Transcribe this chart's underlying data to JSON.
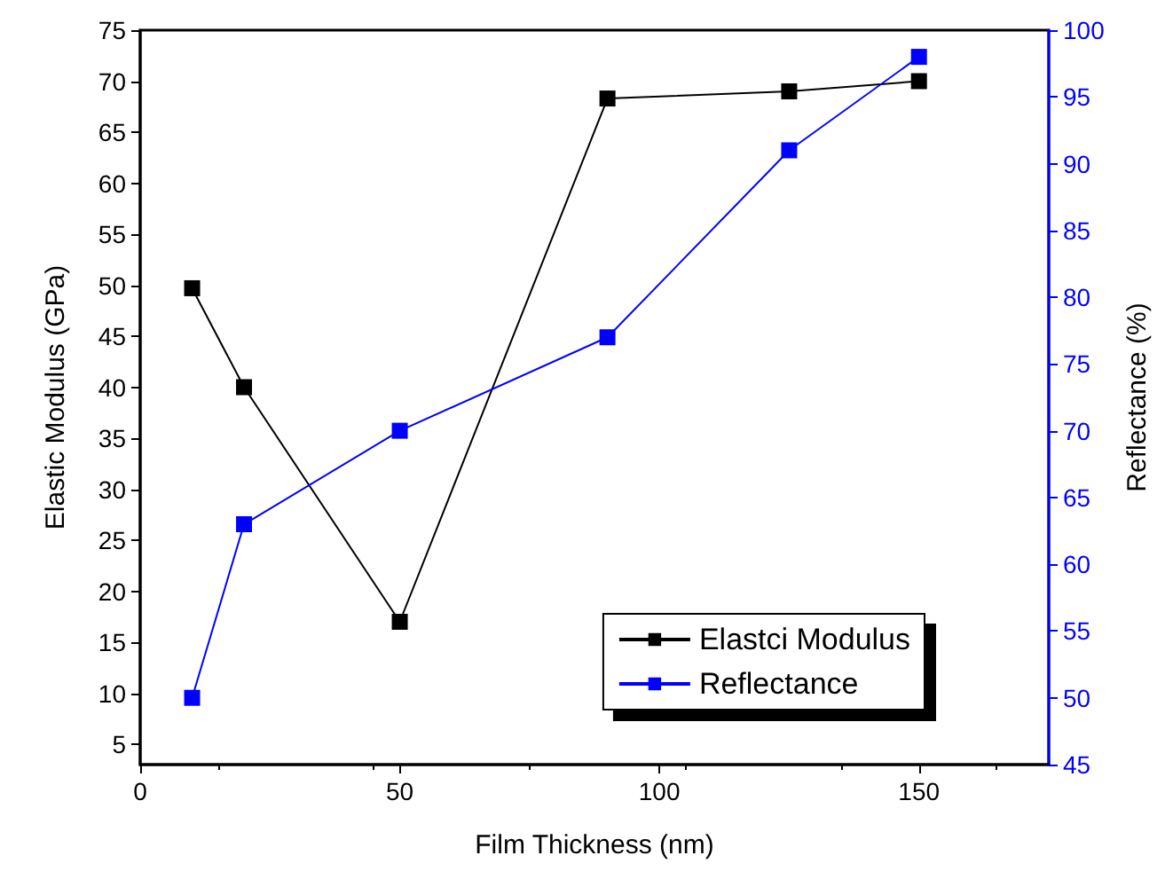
{
  "chart_data": {
    "type": "line",
    "xlabel": "Film Thickness (nm)",
    "ylabel": "Elastic Modulus (GPa)",
    "y2label": "Reflectance (%)",
    "x": [
      10,
      20,
      50,
      90,
      125,
      150
    ],
    "series": [
      {
        "name": "Elastci Modulus",
        "color": "#000000",
        "values": [
          49.7,
          40,
          17,
          68.3,
          69,
          70
        ]
      },
      {
        "name": "Reflectance",
        "color": "#0000ff",
        "axis": "y2",
        "values": [
          50,
          63,
          70,
          77,
          91,
          98
        ]
      }
    ],
    "xlim": [
      0,
      175
    ],
    "xticks": [
      0,
      50,
      100,
      150
    ],
    "ylim": [
      3,
      75
    ],
    "yticks": [
      5,
      10,
      15,
      20,
      25,
      30,
      35,
      40,
      45,
      50,
      55,
      60,
      65,
      70,
      75
    ],
    "y2lim": [
      45,
      100
    ],
    "y2ticks": [
      45,
      50,
      55,
      60,
      65,
      70,
      75,
      80,
      85,
      90,
      95,
      100
    ],
    "legend": "bottom right",
    "marker": "square",
    "line_style": "solid",
    "grid": false
  }
}
